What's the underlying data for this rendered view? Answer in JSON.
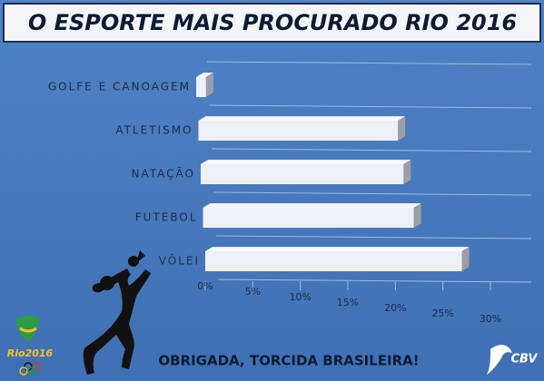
{
  "chart_data": {
    "type": "bar",
    "orientation": "horizontal",
    "title": "O ESPORTE MAIS PROCURADO RIO 2016",
    "categories": [
      "GOLFE E CANOAGEM",
      "ATLETISMO",
      "NATAÇÃO",
      "FUTEBOL",
      "VÔLEI"
    ],
    "values": [
      1,
      20.5,
      21,
      22,
      27
    ],
    "color": "#eef0f7",
    "xlim": [
      0,
      30
    ],
    "xticks": [
      {
        "value": 0,
        "label": "0%"
      },
      {
        "value": 5,
        "label": "5%"
      },
      {
        "value": 10,
        "label": "10%"
      },
      {
        "value": 15,
        "label": "15%"
      },
      {
        "value": 20,
        "label": "20%"
      },
      {
        "value": 25,
        "label": "25%"
      },
      {
        "value": 30,
        "label": "30%"
      }
    ],
    "grid": true
  },
  "footer": "OBRIGADA, TORCIDA BRASILEIRA!",
  "logos": [
    "Rio2016",
    "CBV"
  ]
}
